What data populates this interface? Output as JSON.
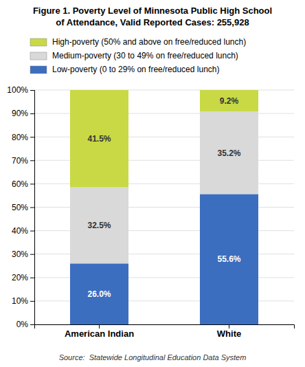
{
  "chart_data": {
    "type": "bar",
    "stacked": true,
    "title": "Figure 1. Poverty Level of Minnesota Public High School",
    "subtitle": "of Attendance, Valid Reported Cases: 255,928",
    "annotations": [
      "Source:  Statewide Longitudinal Education Data System"
    ],
    "categories": [
      "American Indian",
      "White"
    ],
    "series": [
      {
        "name": "Low-poverty (0 to 29% on free/reduced lunch)",
        "color": "#3c6ebf",
        "values": [
          26.0,
          55.6
        ],
        "value_labels": [
          "26.0%",
          "55.6%"
        ]
      },
      {
        "name": "Medium-poverty (30 to 49% on free/reduced lunch)",
        "color": "#d9d9d9",
        "values": [
          32.5,
          35.2
        ],
        "value_labels": [
          "32.5%",
          "35.2%"
        ]
      },
      {
        "name": "High-poverty (50% and above on free/reduced lunch)",
        "color": "#c8d945",
        "values": [
          41.5,
          9.2
        ],
        "value_labels": [
          "41.5%",
          "9.2%"
        ]
      }
    ],
    "ylim": [
      0,
      100
    ],
    "yticks": [
      {
        "value": 0,
        "label": "0%"
      },
      {
        "value": 10,
        "label": "10%"
      },
      {
        "value": 20,
        "label": "20%"
      },
      {
        "value": 30,
        "label": "30%"
      },
      {
        "value": 40,
        "label": "40%"
      },
      {
        "value": 50,
        "label": "50%"
      },
      {
        "value": 60,
        "label": "60%"
      },
      {
        "value": 70,
        "label": "70%"
      },
      {
        "value": 80,
        "label": "80%"
      },
      {
        "value": 90,
        "label": "90%"
      },
      {
        "value": 100,
        "label": "100%"
      }
    ],
    "grid": true,
    "legend": "top",
    "data_labels": true
  }
}
